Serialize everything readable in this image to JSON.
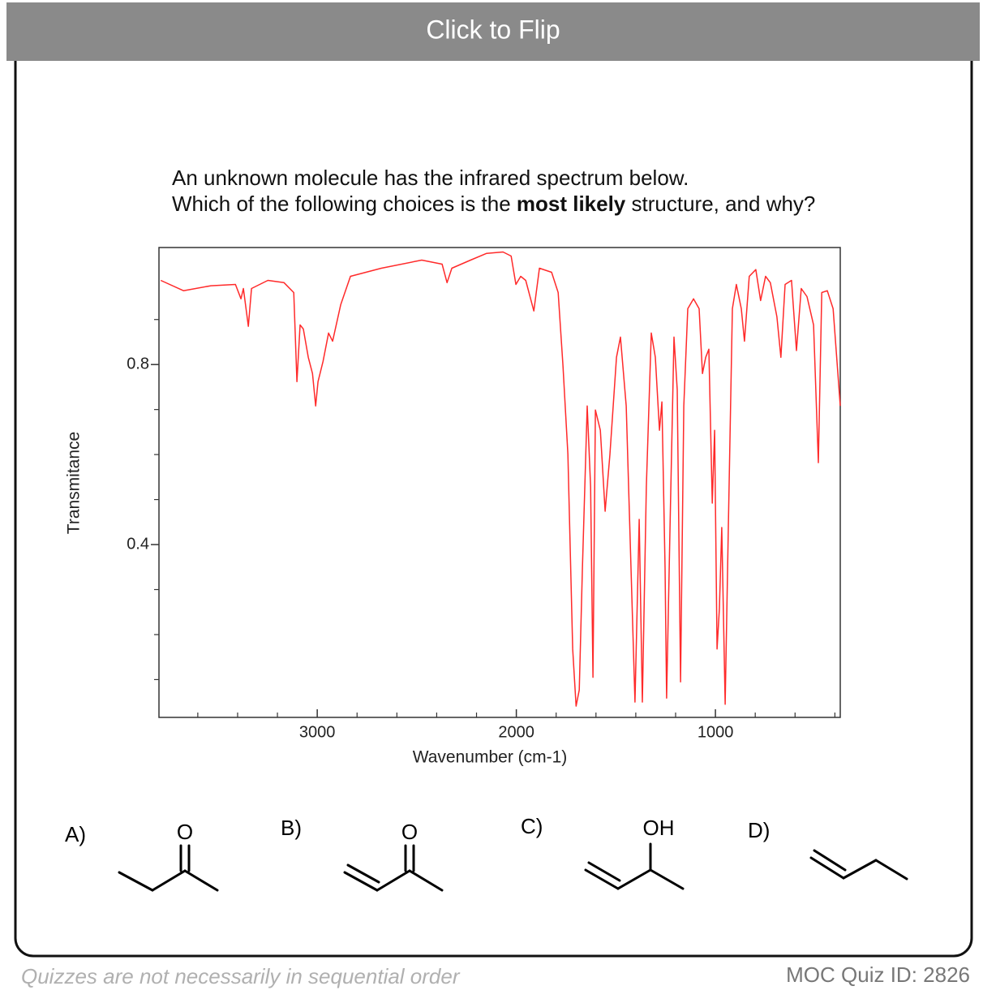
{
  "header": {
    "button": "Click to Flip"
  },
  "question": {
    "line1": "An unknown molecule has the infrared spectrum below.",
    "line2": [
      "Which of the following choices is the ",
      "most likely",
      " structure, and why?"
    ]
  },
  "chart_data": {
    "type": "line",
    "xlabel": "Wavenumber (cm-1)",
    "ylabel": "Transmitance",
    "xlim": [
      3795,
      373
    ],
    "ylim": [
      0.016,
      1.06
    ],
    "xticks": [
      3000,
      2000,
      1000
    ],
    "yticks": [
      0.4,
      0.8
    ],
    "xminor_ticks": [
      3600,
      3400,
      3200,
      2800,
      2600,
      2400,
      2200,
      1800,
      1600,
      1400,
      1200,
      800,
      600,
      400
    ],
    "yminor_ticks": [
      0.1,
      0.2,
      0.3,
      0.5,
      0.6,
      0.7,
      0.9
    ],
    "color": "#ff2a2a",
    "x": [
      3786,
      3672,
      3534,
      3411,
      3383,
      3371,
      3346,
      3330,
      3248,
      3167,
      3118,
      3102,
      3086,
      3070,
      3045,
      3024,
      3008,
      2996,
      2971,
      2943,
      2923,
      2882,
      2833,
      2678,
      2475,
      2373,
      2348,
      2324,
      2230,
      2149,
      2067,
      2026,
      2002,
      1978,
      1953,
      1912,
      1884,
      1823,
      1790,
      1766,
      1741,
      1717,
      1700,
      1684,
      1668,
      1644,
      1627,
      1615,
      1603,
      1578,
      1554,
      1530,
      1497,
      1477,
      1448,
      1424,
      1404,
      1383,
      1367,
      1347,
      1322,
      1302,
      1281,
      1269,
      1253,
      1245,
      1228,
      1208,
      1192,
      1175,
      1159,
      1139,
      1110,
      1082,
      1065,
      1049,
      1033,
      1016,
      1004,
      992,
      980,
      968,
      951,
      935,
      915,
      895,
      870,
      854,
      830,
      797,
      773,
      748,
      724,
      691,
      671,
      650,
      618,
      593,
      569,
      540,
      507,
      483,
      466,
      438,
      409,
      373
    ],
    "values": [
      0.987,
      0.964,
      0.975,
      0.978,
      0.946,
      0.969,
      0.885,
      0.969,
      0.987,
      0.982,
      0.96,
      0.762,
      0.888,
      0.879,
      0.816,
      0.78,
      0.708,
      0.762,
      0.807,
      0.87,
      0.852,
      0.933,
      0.996,
      1.014,
      1.032,
      1.023,
      0.982,
      1.014,
      1.032,
      1.047,
      1.05,
      1.041,
      0.978,
      0.996,
      0.987,
      0.919,
      1.014,
      1.005,
      0.96,
      0.798,
      0.6,
      0.168,
      0.041,
      0.077,
      0.348,
      0.708,
      0.528,
      0.105,
      0.699,
      0.654,
      0.474,
      0.6,
      0.816,
      0.861,
      0.708,
      0.348,
      0.05,
      0.456,
      0.05,
      0.528,
      0.87,
      0.816,
      0.654,
      0.717,
      0.348,
      0.059,
      0.438,
      0.861,
      0.744,
      0.095,
      0.708,
      0.924,
      0.946,
      0.924,
      0.78,
      0.816,
      0.834,
      0.492,
      0.654,
      0.168,
      0.258,
      0.438,
      0.045,
      0.438,
      0.924,
      0.978,
      0.924,
      0.852,
      0.996,
      1.011,
      0.942,
      0.996,
      0.982,
      0.906,
      0.816,
      0.978,
      0.987,
      0.831,
      0.969,
      0.951,
      0.888,
      0.582,
      0.96,
      0.964,
      0.924,
      0.708
    ]
  },
  "choices": [
    {
      "label": "A)",
      "atom": "O"
    },
    {
      "label": "B)",
      "atom": "O"
    },
    {
      "label": "C)",
      "atom": "OH"
    },
    {
      "label": "D)"
    }
  ],
  "footer": {
    "note": "Quizzes are not necessarily in sequential order",
    "quiz_id": "MOC Quiz ID: 2826"
  }
}
